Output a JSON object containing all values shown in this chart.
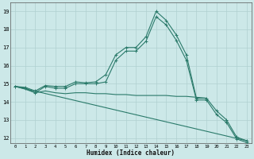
{
  "xlabel": "Humidex (Indice chaleur)",
  "xlim": [
    -0.5,
    23.5
  ],
  "ylim": [
    11.7,
    19.5
  ],
  "xticks": [
    0,
    1,
    2,
    3,
    4,
    5,
    6,
    7,
    8,
    9,
    10,
    11,
    12,
    13,
    14,
    15,
    16,
    17,
    18,
    19,
    20,
    21,
    22,
    23
  ],
  "yticks": [
    12,
    13,
    14,
    15,
    16,
    17,
    18,
    19
  ],
  "background_color": "#cce8e8",
  "grid_color": "#b0d0d0",
  "line_color": "#2a7a6a",
  "series": [
    {
      "x": [
        0,
        1,
        2,
        3,
        4,
        5,
        6,
        7,
        8,
        9,
        10,
        11,
        12,
        13,
        14,
        15,
        16,
        17,
        18,
        19,
        20,
        21,
        22,
        23
      ],
      "y": [
        14.85,
        14.8,
        14.6,
        14.9,
        14.85,
        14.85,
        15.1,
        15.05,
        15.1,
        15.5,
        16.6,
        17.0,
        17.0,
        17.6,
        19.0,
        18.5,
        17.7,
        16.6,
        14.2,
        14.2,
        13.5,
        13.0,
        12.05,
        11.85
      ],
      "marker": true
    },
    {
      "x": [
        0,
        1,
        2,
        3,
        4,
        5,
        6,
        7,
        8,
        9,
        10,
        11,
        12,
        13,
        14,
        15,
        16,
        17,
        18,
        19,
        20,
        21,
        22,
        23
      ],
      "y": [
        14.85,
        14.75,
        14.5,
        14.85,
        14.75,
        14.75,
        15.0,
        15.0,
        15.0,
        15.1,
        16.3,
        16.8,
        16.8,
        17.35,
        18.7,
        18.25,
        17.4,
        16.3,
        14.1,
        14.1,
        13.3,
        12.85,
        11.95,
        11.75
      ],
      "marker": true
    },
    {
      "x": [
        0,
        1,
        2,
        3,
        4,
        5,
        6,
        7,
        8,
        9,
        10,
        11,
        12,
        13,
        14,
        15,
        16,
        17,
        18,
        19
      ],
      "y": [
        14.85,
        14.7,
        14.5,
        14.6,
        14.5,
        14.45,
        14.5,
        14.5,
        14.45,
        14.45,
        14.4,
        14.4,
        14.35,
        14.35,
        14.35,
        14.35,
        14.3,
        14.3,
        14.25,
        14.2
      ],
      "marker": false
    },
    {
      "x": [
        0,
        23
      ],
      "y": [
        14.85,
        11.85
      ],
      "marker": false
    }
  ]
}
